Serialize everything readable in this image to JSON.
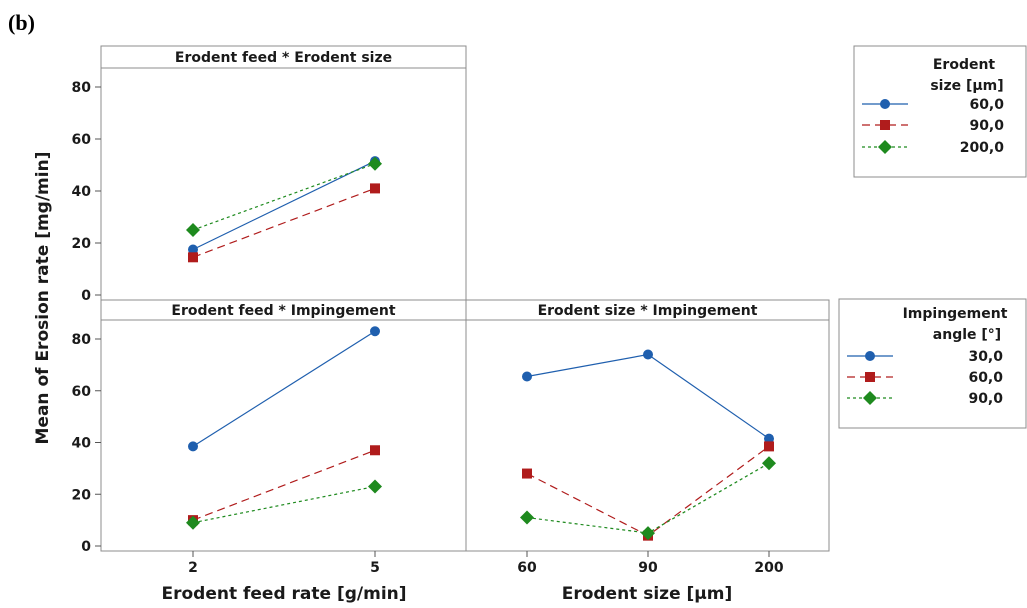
{
  "panel_label_prefix": "(",
  "panel_label_letter": "b",
  "panel_label_suffix": ")",
  "ylabel": "Mean of Erosion rate [mg/min]",
  "xlabel_left": "Erodent feed rate [g/min]",
  "xlabel_right": "Erodent size [μm]",
  "colors": {
    "series1": "#1f5fae",
    "series2": "#b01c1c",
    "series3": "#1e8a1e"
  },
  "chart_data": [
    {
      "type": "line",
      "title": "Erodent feed * Erodent size",
      "x": [
        "2",
        "5"
      ],
      "ylim": [
        0,
        90
      ],
      "yticks": [
        0,
        20,
        40,
        60,
        80
      ],
      "series": [
        {
          "name": "60,0",
          "values": [
            17.5,
            51.5
          ],
          "marker": "circle",
          "dash": "solid"
        },
        {
          "name": "90,0",
          "values": [
            14.5,
            41.0
          ],
          "marker": "square",
          "dash": "dashed"
        },
        {
          "name": "200,0",
          "values": [
            25.0,
            50.5
          ],
          "marker": "diamond",
          "dash": "dotted"
        }
      ],
      "legend": {
        "title_line1": "Erodent",
        "title_line2": "size [μm]"
      }
    },
    {
      "type": "line",
      "title": "Erodent feed * Impingement",
      "x": [
        "2",
        "5"
      ],
      "ylim": [
        0,
        90
      ],
      "yticks": [
        0,
        20,
        40,
        60,
        80
      ],
      "series": [
        {
          "name": "30,0",
          "values": [
            38.5,
            83.0
          ],
          "marker": "circle",
          "dash": "solid"
        },
        {
          "name": "60,0",
          "values": [
            10.0,
            37.0
          ],
          "marker": "square",
          "dash": "dashed"
        },
        {
          "name": "90,0",
          "values": [
            9.0,
            23.0
          ],
          "marker": "diamond",
          "dash": "dotted"
        }
      ],
      "legend": {
        "title_line1": "Impingement",
        "title_line2": "angle [°]"
      }
    },
    {
      "type": "line",
      "title": "Erodent size * Impingement",
      "x": [
        "60",
        "90",
        "200"
      ],
      "ylim": [
        0,
        90
      ],
      "series": [
        {
          "name": "30,0",
          "values": [
            65.5,
            74.0,
            41.5
          ],
          "marker": "circle",
          "dash": "solid"
        },
        {
          "name": "60,0",
          "values": [
            28.0,
            4.0,
            38.5
          ],
          "marker": "square",
          "dash": "dashed"
        },
        {
          "name": "90,0",
          "values": [
            11.0,
            5.0,
            32.0
          ],
          "marker": "diamond",
          "dash": "dotted"
        }
      ]
    }
  ]
}
